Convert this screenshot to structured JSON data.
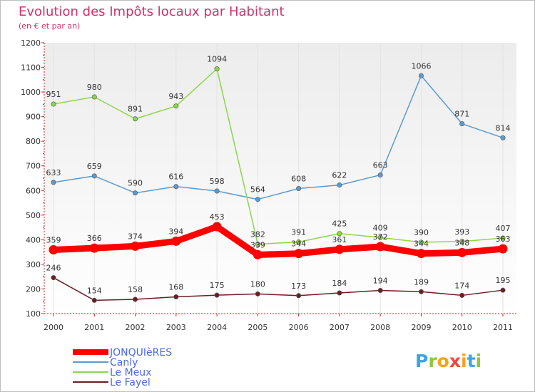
{
  "chart_data": {
    "type": "line",
    "title": "Evolution des Impôts locaux par Habitant",
    "subtitle": "(en € et par an)",
    "xlabel": "",
    "ylabel": "",
    "ylim": [
      100,
      1200
    ],
    "yticks": [
      100,
      200,
      300,
      400,
      500,
      600,
      700,
      800,
      900,
      1000,
      1100,
      1200
    ],
    "categories": [
      "2000",
      "2001",
      "2002",
      "2003",
      "2004",
      "2005",
      "2006",
      "2007",
      "2008",
      "2009",
      "2010",
      "2011"
    ],
    "legend_position": "bottom-left",
    "series": [
      {
        "name": "Le Fayel",
        "color": "#6b1e22",
        "highlight": false,
        "values": [
          246,
          154,
          158,
          168,
          175,
          180,
          173,
          184,
          194,
          189,
          174,
          195
        ]
      },
      {
        "name": "Canly",
        "color": "#5b9bd0",
        "highlight": false,
        "values": [
          633,
          659,
          590,
          616,
          598,
          564,
          608,
          622,
          663,
          1066,
          871,
          814
        ]
      },
      {
        "name": "Le Meux",
        "color": "#8dd64a",
        "highlight": false,
        "values": [
          951,
          980,
          891,
          943,
          1094,
          382,
          391,
          425,
          409,
          390,
          393,
          407
        ]
      },
      {
        "name": "JONQUIèRES",
        "color": "#ff0000",
        "highlight": true,
        "values": [
          359,
          366,
          374,
          394,
          453,
          339,
          344,
          361,
          372,
          344,
          348,
          363
        ]
      }
    ],
    "legend_order": [
      "JONQUIèRES",
      "Canly",
      "Le Meux",
      "Le Fayel"
    ],
    "legend_text_color": "#4a68e8"
  },
  "brand": {
    "logo_letters": [
      "P",
      "r",
      "o",
      "x",
      "i",
      "t",
      "i"
    ],
    "logo_colors": [
      "#3da5e0",
      "#8ec63f",
      "#f7a21b",
      "#e84c3d",
      "#f7a21b",
      "#3da5e0",
      "#8ec63f"
    ]
  }
}
